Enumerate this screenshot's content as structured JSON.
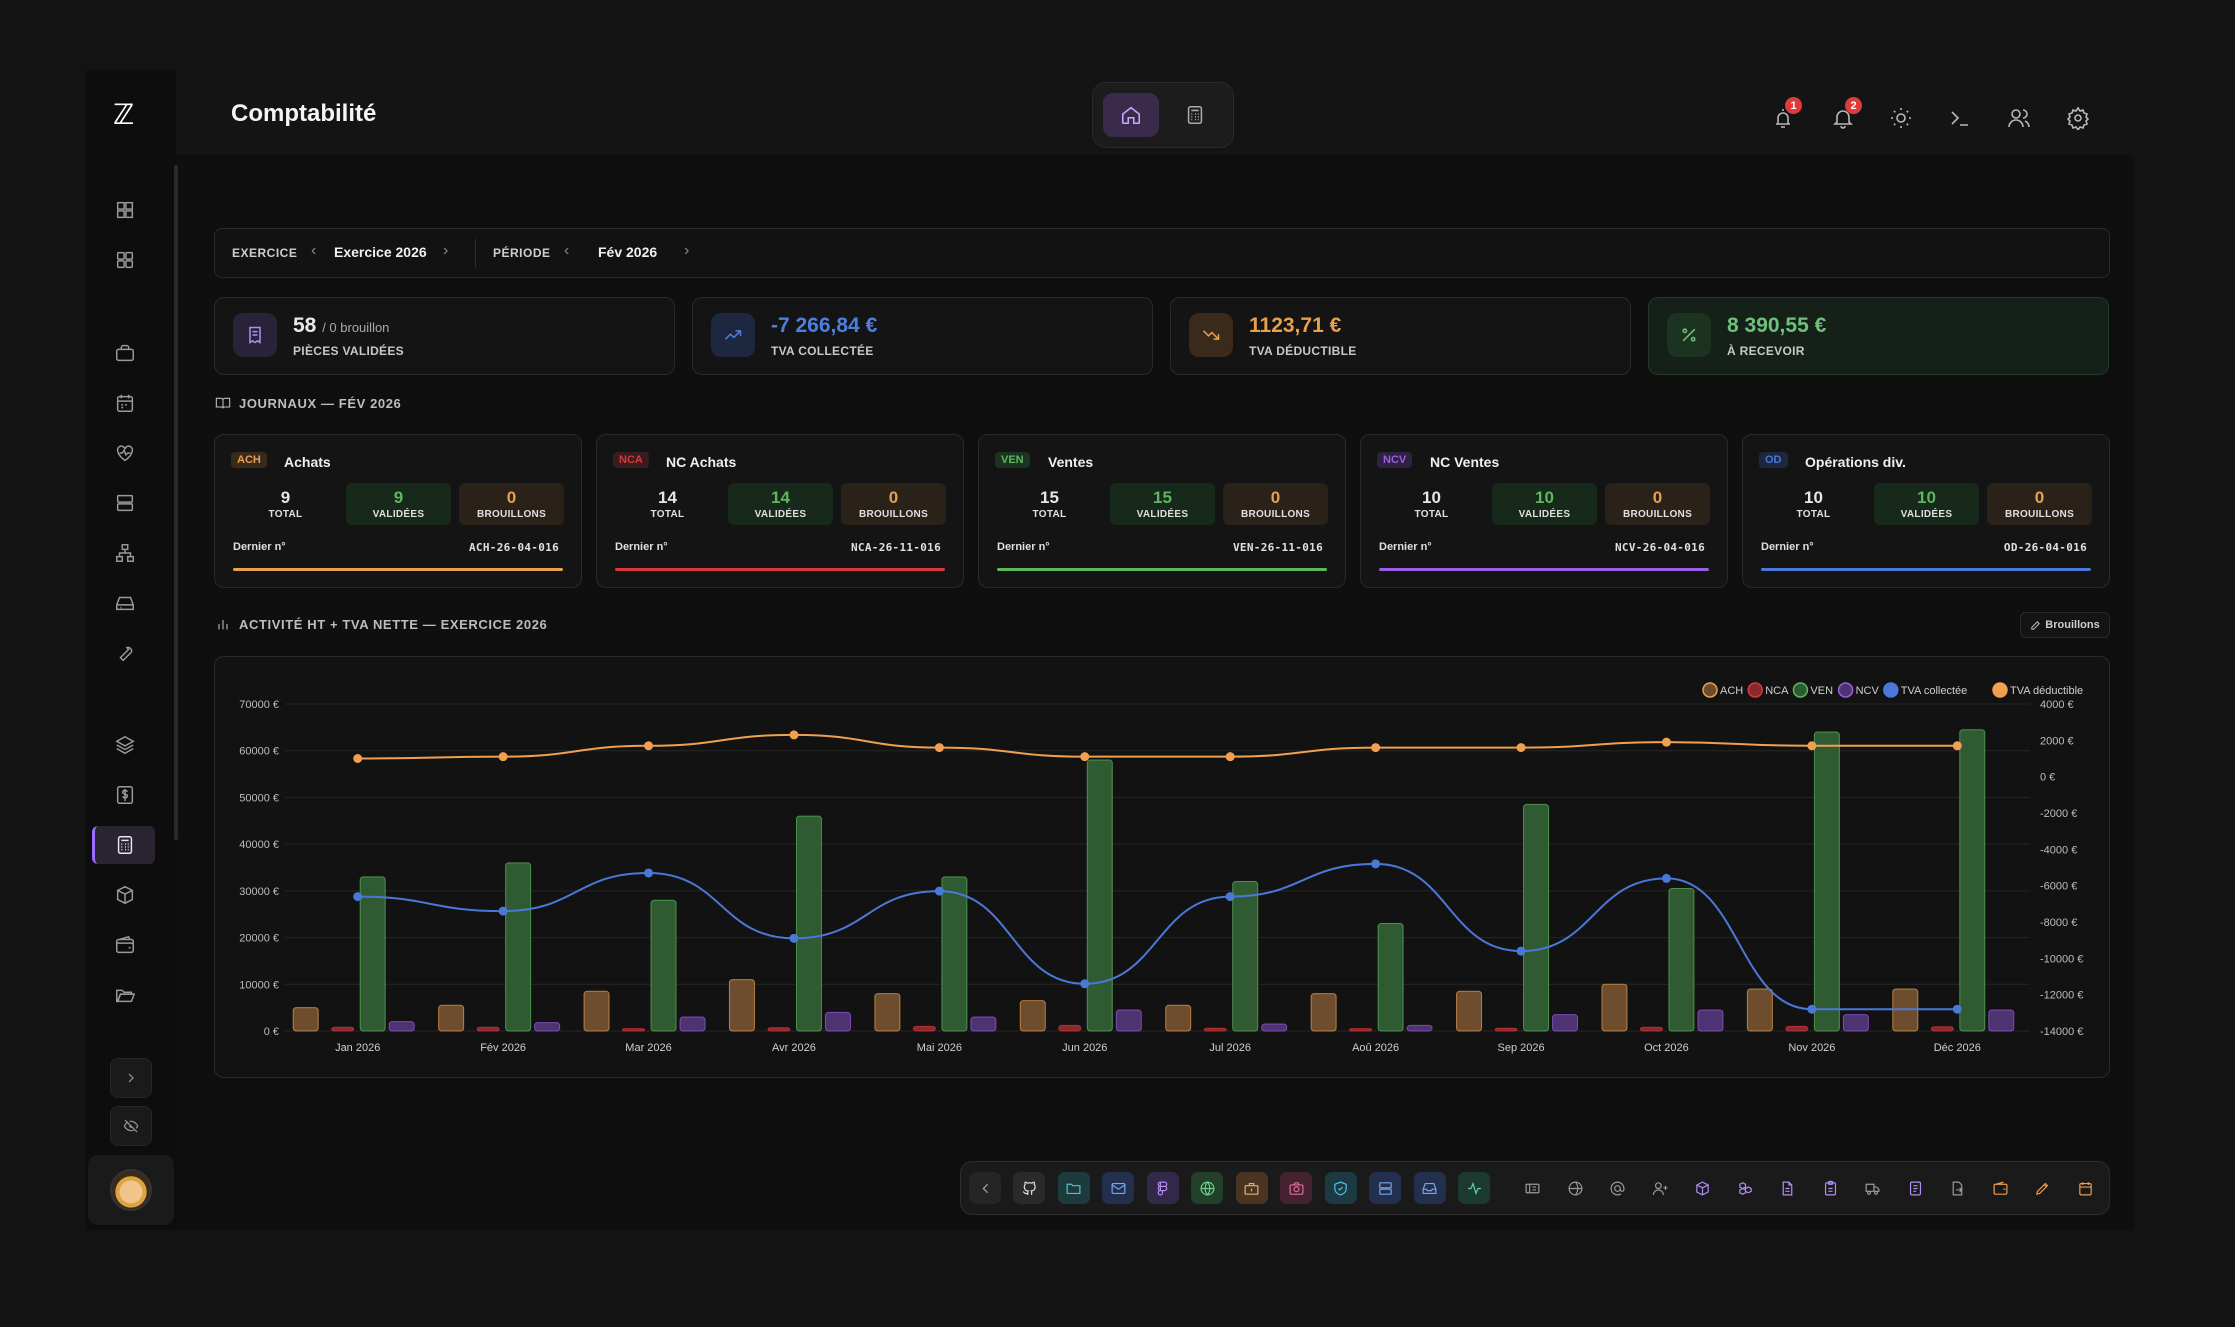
{
  "app": {
    "title": "Comptabilité"
  },
  "header": {
    "notif_badge_1": "1",
    "notif_badge_2": "2"
  },
  "filters": {
    "exercice_label": "EXERCICE",
    "exercice_value": "Exercice 2026",
    "periode_label": "PÉRIODE",
    "periode_value": "Fév 2026"
  },
  "kpis": [
    {
      "value": "58",
      "sub": "/ 0 brouillon",
      "label": "PIÈCES VALIDÉES",
      "color": "#e8e8e8",
      "icon": "receipt-icon"
    },
    {
      "value": "-7 266,84 €",
      "label": "TVA COLLECTÉE",
      "color": "#4d7fe0",
      "icon": "trend-up-icon"
    },
    {
      "value": "1123,71 €",
      "label": "TVA DÉDUCTIBLE",
      "color": "#e8a050",
      "icon": "trend-down-icon"
    },
    {
      "value": "8 390,55 €",
      "label": "À RECEVOIR",
      "color": "#6fc07a",
      "icon": "percent-icon"
    }
  ],
  "journals_title": "JOURNAUX — FÉV 2026",
  "journals": [
    {
      "code": "ACH",
      "name": "Achats",
      "total": "9",
      "validated": "9",
      "drafts": "0",
      "last_label": "Dernier n°",
      "last_ref": "ACH-26-04-016",
      "color": "#e8a050"
    },
    {
      "code": "NCA",
      "name": "NC Achats",
      "total": "14",
      "validated": "14",
      "drafts": "0",
      "last_label": "Dernier n°",
      "last_ref": "NCA-26-11-016",
      "color": "#d9383c"
    },
    {
      "code": "VEN",
      "name": "Ventes",
      "total": "15",
      "validated": "15",
      "drafts": "0",
      "last_label": "Dernier n°",
      "last_ref": "VEN-26-11-016",
      "color": "#5cb85c"
    },
    {
      "code": "NCV",
      "name": "NC Ventes",
      "total": "10",
      "validated": "10",
      "drafts": "0",
      "last_label": "Dernier n°",
      "last_ref": "NCV-26-04-016",
      "color": "#9b5de5"
    },
    {
      "code": "OD",
      "name": "Opérations div.",
      "total": "10",
      "validated": "10",
      "drafts": "0",
      "last_label": "Dernier n°",
      "last_ref": "OD-26-04-016",
      "color": "#4a78d8"
    }
  ],
  "journal_labels": {
    "total": "TOTAL",
    "validated": "VALIDÉES",
    "drafts": "BROUILLONS"
  },
  "activity_title": "ACTIVITÉ HT + TVA NETTE — EXERCICE 2026",
  "drafts_button": "Brouillons",
  "chart_data": {
    "type": "bar",
    "categories": [
      "Jan 2026",
      "Fév 2026",
      "Mar 2026",
      "Avr 2026",
      "Mai 2026",
      "Jun 2026",
      "Jul 2026",
      "Aoû 2026",
      "Sep 2026",
      "Oct 2026",
      "Nov 2026",
      "Déc 2026"
    ],
    "series": [
      {
        "name": "ACH",
        "type": "bar",
        "axis": "left",
        "color": "#e8a050",
        "values": [
          5000,
          5500,
          8500,
          11000,
          8000,
          6500,
          5500,
          8000,
          8500,
          10000,
          9000,
          9000
        ]
      },
      {
        "name": "NCA",
        "type": "bar",
        "axis": "left",
        "color": "#d9383c",
        "values": [
          800,
          800,
          500,
          700,
          1000,
          1200,
          600,
          500,
          600,
          800,
          1000,
          900
        ]
      },
      {
        "name": "VEN",
        "type": "bar",
        "axis": "left",
        "color": "#5cb85c",
        "values": [
          33000,
          36000,
          28000,
          46000,
          33000,
          58000,
          32000,
          23000,
          48500,
          30500,
          64000,
          64500
        ]
      },
      {
        "name": "NCV",
        "type": "bar",
        "axis": "left",
        "color": "#9b5de5",
        "values": [
          2000,
          1800,
          3000,
          4000,
          3000,
          4500,
          1500,
          1200,
          3500,
          4500,
          3500,
          4500
        ]
      },
      {
        "name": "TVA collectée",
        "type": "line",
        "axis": "right",
        "color": "#4a78d8",
        "values": [
          -6600,
          -7400,
          -5300,
          -8900,
          -6300,
          -11400,
          -6600,
          -4800,
          -9600,
          -5600,
          -12800,
          -12800
        ]
      },
      {
        "name": "TVA déductible",
        "type": "line",
        "axis": "right",
        "color": "#f0a050",
        "values": [
          1000,
          1100,
          1700,
          2300,
          1600,
          1100,
          1100,
          1600,
          1600,
          1900,
          1700,
          1700
        ]
      }
    ],
    "y_left": {
      "min": 0,
      "max": 70000,
      "ticks": [
        0,
        10000,
        20000,
        30000,
        40000,
        50000,
        60000,
        70000
      ],
      "tick_labels": [
        "0 €",
        "10000 €",
        "20000 €",
        "30000 €",
        "40000 €",
        "50000 €",
        "60000 €",
        "70000 €"
      ]
    },
    "y_right": {
      "min": -14000,
      "max": 4000,
      "ticks": [
        -14000,
        -12000,
        -10000,
        -8000,
        -6000,
        -4000,
        -2000,
        0,
        2000,
        4000
      ],
      "tick_labels": [
        "-14000 €",
        "-12000 €",
        "-10000 €",
        "-8000 €",
        "-6000 €",
        "-4000 €",
        "-2000 €",
        "0 €",
        "2000 €",
        "4000 €"
      ]
    },
    "grid": true,
    "legend_position": "top-right"
  },
  "sidebar": {
    "icons": [
      "dashboard-icon",
      "grid-icon",
      "briefcase-icon",
      "calendar-icon",
      "heart-pulse-icon",
      "server-icon",
      "network-icon",
      "drive-icon",
      "wrench-icon",
      "layers-icon",
      "dollar-icon",
      "calculator-icon",
      "package-icon",
      "wallet-icon",
      "folder-open-icon"
    ],
    "active": "calculator-icon"
  },
  "dock": {
    "colored": [
      {
        "icon": "github-icon",
        "color": "#e0e0e0",
        "bg": "#2a2a2a"
      },
      {
        "icon": "folder-icon",
        "color": "#4fc3c9",
        "bg": "#1d3a3c"
      },
      {
        "icon": "mail-icon",
        "color": "#7aa5f0",
        "bg": "#22304d"
      },
      {
        "icon": "figma-icon",
        "color": "#b28cf5",
        "bg": "#33284a"
      },
      {
        "icon": "globe-icon",
        "color": "#6fd08a",
        "bg": "#20402a"
      },
      {
        "icon": "toolbox-icon",
        "color": "#e8b070",
        "bg": "#4a3522"
      },
      {
        "icon": "camera-icon",
        "color": "#e46a9a",
        "bg": "#44222f"
      },
      {
        "icon": "shield-icon",
        "color": "#4fc3e0",
        "bg": "#1d3a44"
      },
      {
        "icon": "database-icon",
        "color": "#7aa5f0",
        "bg": "#22304d"
      },
      {
        "icon": "inbox-icon",
        "color": "#7aa5f0",
        "bg": "#22304d"
      },
      {
        "icon": "activity-icon",
        "color": "#5fd0a0",
        "bg": "#1d3a30"
      }
    ],
    "plain": [
      "ticket-icon",
      "globe-alt-icon",
      "at-icon",
      "user-plus-icon",
      "cube-icon",
      "cubes-icon",
      "file-icon",
      "clipboard-icon",
      "truck-icon",
      "document-icon",
      "export-icon",
      "wallet-alt-icon",
      "pen-icon",
      "calendar-alt-icon"
    ]
  }
}
